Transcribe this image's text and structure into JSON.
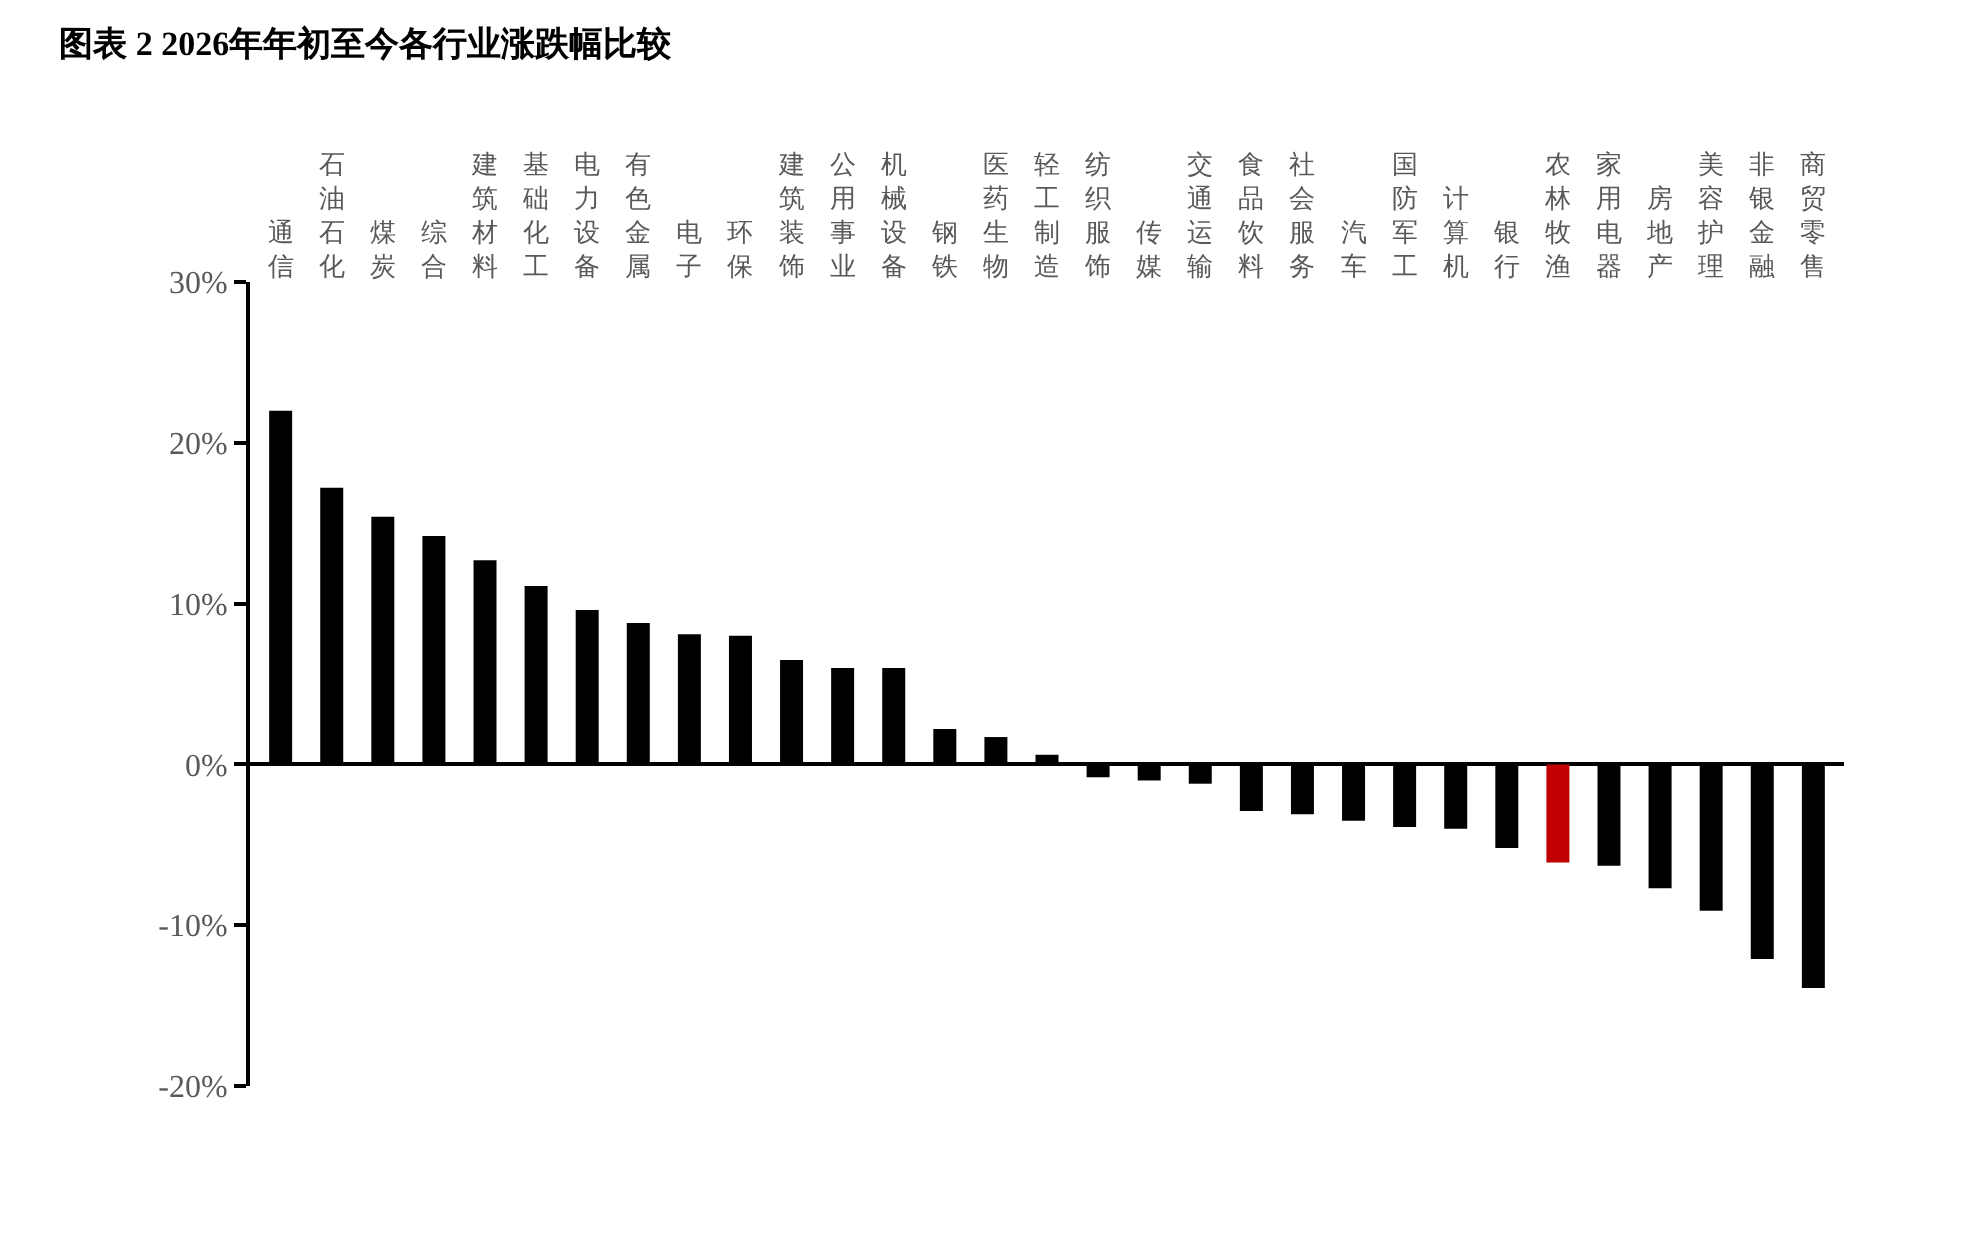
{
  "chart_data": {
    "type": "bar",
    "title": "图表 2 2026年年初至今各行业涨跌幅比较",
    "categories": [
      "通信",
      "石油石化",
      "煤炭",
      "综合",
      "建筑材料",
      "基础化工",
      "电力设备",
      "有色金属",
      "电子",
      "环保",
      "建筑装饰",
      "公用事业",
      "机械设备",
      "钢铁",
      "医药生物",
      "轻工制造",
      "纺织服饰",
      "传媒",
      "交通运输",
      "食品饮料",
      "社会服务",
      "汽车",
      "国防军工",
      "计算机",
      "银行",
      "农林牧渔",
      "家用电器",
      "房地产",
      "美容护理",
      "非银金融",
      "商贸零售"
    ],
    "values": [
      22.0,
      17.2,
      15.4,
      14.2,
      12.7,
      11.1,
      9.6,
      8.8,
      8.1,
      8.0,
      6.5,
      6.0,
      6.0,
      2.2,
      1.7,
      0.6,
      -0.8,
      -1.0,
      -1.2,
      -2.9,
      -3.1,
      -3.5,
      -3.9,
      -4.0,
      -5.2,
      -6.1,
      -6.3,
      -7.7,
      -9.1,
      -12.1,
      -13.9
    ],
    "colors": [
      "#000000",
      "#000000",
      "#000000",
      "#000000",
      "#000000",
      "#000000",
      "#000000",
      "#000000",
      "#000000",
      "#000000",
      "#000000",
      "#000000",
      "#000000",
      "#000000",
      "#000000",
      "#000000",
      "#000000",
      "#000000",
      "#000000",
      "#000000",
      "#000000",
      "#000000",
      "#000000",
      "#000000",
      "#000000",
      "#c00000",
      "#000000",
      "#000000",
      "#000000",
      "#000000",
      "#000000"
    ],
    "ylim": [
      -20,
      30
    ],
    "yticks": [
      {
        "value": -20,
        "label": "-20%"
      },
      {
        "value": -10,
        "label": "-10%"
      },
      {
        "value": 0,
        "label": "0%"
      },
      {
        "value": 10,
        "label": "10%"
      },
      {
        "value": 20,
        "label": "20%"
      },
      {
        "value": 30,
        "label": "30%"
      }
    ]
  }
}
